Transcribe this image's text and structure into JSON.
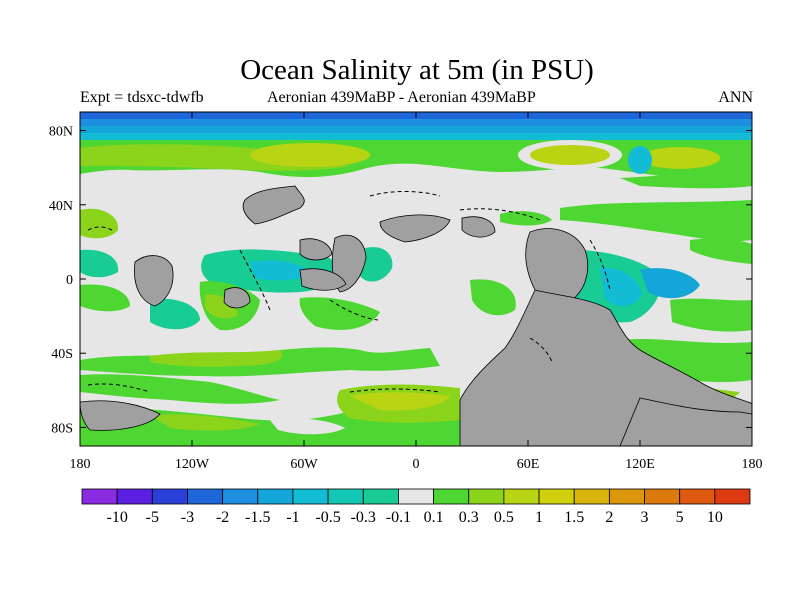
{
  "title": "Ocean Salinity at 5m (in PSU)",
  "subtitle_left": "Expt = tdsxc-tdwfb",
  "subtitle_center": "Aeronian 439MaBP - Aeronian 439MaBP",
  "subtitle_right": "ANN",
  "map": {
    "lon_range": [
      -180,
      180
    ],
    "lat_range": [
      -90,
      90
    ],
    "x_ticks": [
      {
        "value": -180,
        "label": "180"
      },
      {
        "value": -120,
        "label": "120W"
      },
      {
        "value": -60,
        "label": "60W"
      },
      {
        "value": 0,
        "label": "0"
      },
      {
        "value": 60,
        "label": "60E"
      },
      {
        "value": 120,
        "label": "120E"
      },
      {
        "value": 180,
        "label": "180"
      }
    ],
    "y_ticks": [
      {
        "value": 80,
        "label": "80N"
      },
      {
        "value": 40,
        "label": "40N"
      },
      {
        "value": 0,
        "label": "0"
      },
      {
        "value": -40,
        "label": "40S"
      },
      {
        "value": -80,
        "label": "80S"
      }
    ]
  },
  "colorbar": {
    "colors": [
      "#8a2be2",
      "#5a1fe0",
      "#2a3fd8",
      "#1f66d8",
      "#1e8ee0",
      "#14a6d8",
      "#12bcd4",
      "#14c6b4",
      "#18cc94",
      "#e6e6e6",
      "#4ed632",
      "#8cd41c",
      "#b8d412",
      "#d2d00c",
      "#d8b40c",
      "#dc960c",
      "#dc7a0c",
      "#de5a10",
      "#dc3a10"
    ],
    "labels": [
      "-10",
      "-5",
      "-3",
      "-2",
      "-1.5",
      "-1",
      "-0.5",
      "-0.3",
      "-0.1",
      "0.1",
      "0.3",
      "0.5",
      "1",
      "1.5",
      "2",
      "3",
      "5",
      "10"
    ]
  },
  "legend_colors": {
    "land": "#a0a0a0",
    "no_change": "#e6e6e6",
    "slight_fresh": "#18cc94",
    "fresh": "#12bcd4",
    "slight_salty": "#4ed632",
    "salty": "#8cd41c",
    "saltier": "#b8d412",
    "polar_fresh": "#1f66d8"
  }
}
